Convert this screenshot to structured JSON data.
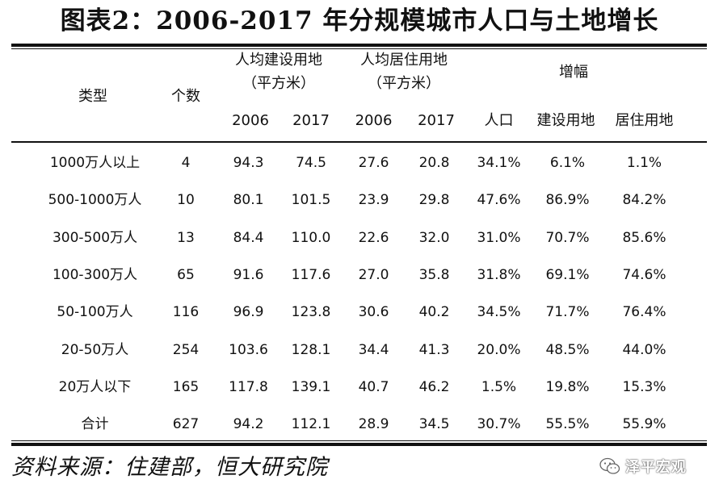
{
  "title": "图表2：2006-2017 年分规模城市人口与土地增长",
  "header": {
    "type": "类型",
    "count": "个数",
    "construction_line1": "人均建设用地",
    "construction_line2": "（平方米）",
    "residential_line1": "人均居住用地",
    "residential_line2": "（平方米）",
    "growth": "增幅",
    "year_2006_a": "2006",
    "year_2017_a": "2017",
    "year_2006_b": "2006",
    "year_2017_b": "2017",
    "population": "人口",
    "construction_land": "建设用地",
    "residential_land": "居住用地"
  },
  "rows": [
    {
      "type": "1000万人以上",
      "count": "4",
      "c2006": "94.3",
      "c2017": "74.5",
      "r2006": "27.6",
      "r2017": "20.8",
      "pop": "34.1%",
      "cl": "6.1%",
      "rl": "1.1%"
    },
    {
      "type": "500-1000万人",
      "count": "10",
      "c2006": "80.1",
      "c2017": "101.5",
      "r2006": "23.9",
      "r2017": "29.8",
      "pop": "47.6%",
      "cl": "86.9%",
      "rl": "84.2%"
    },
    {
      "type": "300-500万人",
      "count": "13",
      "c2006": "84.4",
      "c2017": "110.0",
      "r2006": "22.6",
      "r2017": "32.0",
      "pop": "31.0%",
      "cl": "70.7%",
      "rl": "85.6%"
    },
    {
      "type": "100-300万人",
      "count": "65",
      "c2006": "91.6",
      "c2017": "117.6",
      "r2006": "27.0",
      "r2017": "35.8",
      "pop": "31.8%",
      "cl": "69.1%",
      "rl": "74.6%"
    },
    {
      "type": "50-100万人",
      "count": "116",
      "c2006": "96.9",
      "c2017": "123.8",
      "r2006": "30.6",
      "r2017": "40.2",
      "pop": "34.5%",
      "cl": "71.7%",
      "rl": "76.4%"
    },
    {
      "type": "20-50万人",
      "count": "254",
      "c2006": "103.6",
      "c2017": "128.1",
      "r2006": "34.4",
      "r2017": "41.3",
      "pop": "20.0%",
      "cl": "48.5%",
      "rl": "44.0%"
    },
    {
      "type": "20万人以下",
      "count": "165",
      "c2006": "117.8",
      "c2017": "139.1",
      "r2006": "40.7",
      "r2017": "46.2",
      "pop": "1.5%",
      "cl": "19.8%",
      "rl": "15.3%"
    },
    {
      "type": "合计",
      "count": "627",
      "c2006": "94.2",
      "c2017": "112.1",
      "r2006": "28.9",
      "r2017": "34.5",
      "pop": "30.7%",
      "cl": "55.5%",
      "rl": "55.9%"
    }
  ],
  "source": "资料来源：住建部，恒大研究院",
  "watermark": {
    "icon": "wechat-icon",
    "text": "泽平宏观"
  }
}
